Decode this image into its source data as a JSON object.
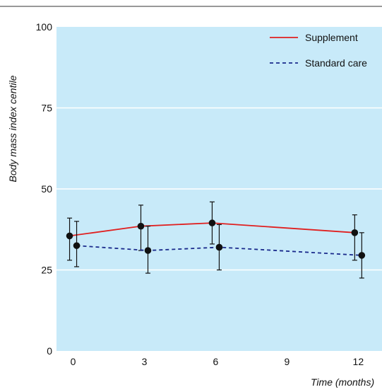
{
  "chart_data": {
    "type": "line",
    "xlabel": "Time (months)",
    "ylabel": "Body mass index centile",
    "xlim": [
      -0.7,
      13
    ],
    "ylim": [
      0,
      100
    ],
    "xticks": [
      "0",
      "3",
      "6",
      "9",
      "12"
    ],
    "yticks": [
      "0",
      "25",
      "50",
      "75",
      "100"
    ],
    "grid": "horizontal",
    "legend_position": "top-right",
    "background": "#c8eaf9",
    "series": [
      {
        "name": "Supplement",
        "color": "#e02020",
        "style": "solid",
        "x": [
          0,
          3,
          6,
          12
        ],
        "y": [
          35.5,
          38.5,
          39.5,
          36.5
        ],
        "ci_low": [
          28,
          31,
          33,
          28
        ],
        "ci_high": [
          41,
          45,
          46,
          42
        ]
      },
      {
        "name": "Standard care",
        "color": "#1a2a8c",
        "style": "dashed",
        "x": [
          0,
          3,
          6,
          12
        ],
        "y": [
          32.5,
          31,
          32,
          29.5
        ],
        "ci_low": [
          26,
          24,
          25,
          22.5
        ],
        "ci_high": [
          40,
          38.5,
          39,
          36.5
        ]
      }
    ]
  }
}
